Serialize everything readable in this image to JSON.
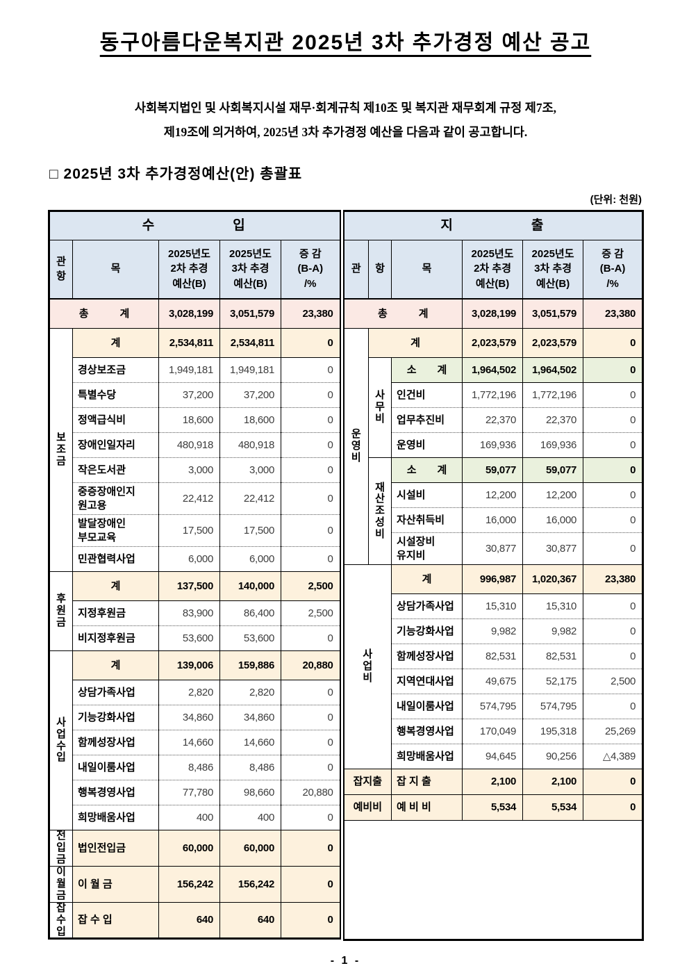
{
  "doc": {
    "title": "동구아름다운복지관 2025년 3차 추가경정 예산 공고",
    "intro_line1": "사회복지법인 및 사회복지시설 재무·회계규칙 제10조 및 복지관 재무회계 규정 제7조,",
    "intro_line2": "제19조에 의거하여, 2025년 3차 추가경정 예산을 다음과 같이 공고합니다.",
    "section_title": "□ 2025년 3차 추가경정예산(안) 총괄표",
    "unit_label": "(단위:  천원)",
    "page_number": "- 1 -"
  },
  "colors": {
    "head": "#dce6f1",
    "total": "#fbe9e4",
    "sum": "#fdf1dd",
    "subsum": "#eaf1dd"
  },
  "income_table": {
    "section": "수입",
    "rows": [
      {
        "kind": "head1",
        "cells": [
          {
            "t": "수　　　　　입",
            "cs": 5,
            "cls": "hdr hd1",
            "n": "income-section-header"
          }
        ]
      },
      {
        "kind": "head2",
        "cells": [
          {
            "t": "관\n항",
            "cls": "hdr",
            "n": "col-header-gwan-hang"
          },
          {
            "t": "목",
            "cls": "hdr",
            "n": "col-header-mok"
          },
          {
            "t": "2025년도\n2차 추경\n예산(B)",
            "cls": "hdr",
            "n": "col-header-budget-2"
          },
          {
            "t": "2025년도\n3차 추경\n예산(B)",
            "cls": "hdr",
            "n": "col-header-budget-3"
          },
          {
            "t": "증  감\n(B-A)\n/%",
            "cls": "hdr",
            "n": "col-header-change"
          }
        ]
      },
      {
        "kind": "total",
        "label": "총　　　계",
        "lcs": 2,
        "v": [
          "3,028,199",
          "3,051,579",
          "23,380"
        ]
      },
      {
        "kind": "sum",
        "pre": [
          {
            "t": "보\n조\n금",
            "rs": 9
          }
        ],
        "label": "계",
        "v": [
          "2,534,811",
          "2,534,811",
          "0"
        ]
      },
      {
        "kind": "item",
        "label": "경상보조금",
        "v": [
          "1,949,181",
          "1,949,181",
          "0"
        ]
      },
      {
        "kind": "item",
        "dot": true,
        "label": "특별수당",
        "v": [
          "37,200",
          "37,200",
          "0"
        ]
      },
      {
        "kind": "item",
        "dot": true,
        "label": "정액급식비",
        "v": [
          "18,600",
          "18,600",
          "0"
        ]
      },
      {
        "kind": "item",
        "dot": true,
        "label": "장애인일자리",
        "v": [
          "480,918",
          "480,918",
          "0"
        ]
      },
      {
        "kind": "item",
        "dot": true,
        "label": "작은도서관",
        "v": [
          "3,000",
          "3,000",
          "0"
        ]
      },
      {
        "kind": "item",
        "dot": true,
        "tall": true,
        "label": "중증장애인지\n원고용",
        "v": [
          "22,412",
          "22,412",
          "0"
        ]
      },
      {
        "kind": "item",
        "dot": true,
        "tall": true,
        "label": "발달장애인\n부모교육",
        "v": [
          "17,500",
          "17,500",
          "0"
        ]
      },
      {
        "kind": "item",
        "dot": true,
        "label": "민관협력사업",
        "v": [
          "6,000",
          "6,000",
          "0"
        ]
      },
      {
        "kind": "sum",
        "pre": [
          {
            "t": "후\n원\n금",
            "rs": 3
          }
        ],
        "label": "계",
        "v": [
          "137,500",
          "140,000",
          "2,500"
        ]
      },
      {
        "kind": "item",
        "label": "지정후원금",
        "v": [
          "83,900",
          "86,400",
          "2,500"
        ]
      },
      {
        "kind": "item",
        "dot": true,
        "label": "비지정후원금",
        "v": [
          "53,600",
          "53,600",
          "0"
        ]
      },
      {
        "kind": "sum",
        "pre": [
          {
            "t": "사\n업\n수\n입",
            "rs": 7
          }
        ],
        "label": "계",
        "v": [
          "139,006",
          "159,886",
          "20,880"
        ]
      },
      {
        "kind": "item",
        "label": "상담가족사업",
        "v": [
          "2,820",
          "2,820",
          "0"
        ]
      },
      {
        "kind": "item",
        "dot": true,
        "label": "기능강화사업",
        "v": [
          "34,860",
          "34,860",
          "0"
        ]
      },
      {
        "kind": "item",
        "dot": true,
        "label": "함께성장사업",
        "v": [
          "14,660",
          "14,660",
          "0"
        ]
      },
      {
        "kind": "item",
        "dot": true,
        "label": "내일이룸사업",
        "v": [
          "8,486",
          "8,486",
          "0"
        ]
      },
      {
        "kind": "item",
        "dot": true,
        "label": "행복경영사업",
        "v": [
          "77,780",
          "98,660",
          "20,880"
        ]
      },
      {
        "kind": "item",
        "dot": true,
        "label": "희망배움사업",
        "v": [
          "400",
          "400",
          "0"
        ]
      },
      {
        "kind": "single",
        "pre": [
          {
            "t": "전\n입\n금"
          }
        ],
        "label": "법인전입금",
        "v": [
          "60,000",
          "60,000",
          "0"
        ]
      },
      {
        "kind": "single",
        "pre": [
          {
            "t": "이\n월\n금"
          }
        ],
        "label": "이  월  금",
        "v": [
          "156,242",
          "156,242",
          "0"
        ]
      },
      {
        "kind": "single",
        "pre": [
          {
            "t": "잡\n수\n입"
          }
        ],
        "label": "잡  수  입",
        "v": [
          "640",
          "640",
          "0"
        ]
      }
    ]
  },
  "expense_table": {
    "section": "지출",
    "rows": [
      {
        "kind": "head1",
        "cells": [
          {
            "t": "지　　　　　출",
            "cs": 6,
            "cls": "hdr hd1",
            "n": "expense-section-header"
          }
        ]
      },
      {
        "kind": "head2",
        "cells": [
          {
            "t": "관",
            "cls": "hdr",
            "n": "col-header-gwan"
          },
          {
            "t": "항",
            "cls": "hdr",
            "n": "col-header-hang"
          },
          {
            "t": "목",
            "cls": "hdr",
            "n": "col-header-mok"
          },
          {
            "t": "2025년도\n2차 추경\n예산(B)",
            "cls": "hdr",
            "n": "col-header-budget-2"
          },
          {
            "t": "2025년도\n3차 추경\n예산(B)",
            "cls": "hdr",
            "n": "col-header-budget-3"
          },
          {
            "t": "증  감\n(B-A)\n/%",
            "cls": "hdr",
            "n": "col-header-change"
          }
        ]
      },
      {
        "kind": "total",
        "label": "총　　　계",
        "lcs": 3,
        "v": [
          "3,028,199",
          "3,051,579",
          "23,380"
        ]
      },
      {
        "kind": "sum",
        "pre": [
          {
            "t": "운\n영\n비",
            "rs": 9
          }
        ],
        "label": "계",
        "lcs": 2,
        "v": [
          "2,023,579",
          "2,023,579",
          "0"
        ]
      },
      {
        "kind": "subsum",
        "pre": [
          {
            "t": "사\n무\n비",
            "rs": 4
          }
        ],
        "label": "소　　계",
        "v": [
          "1,964,502",
          "1,964,502",
          "0"
        ]
      },
      {
        "kind": "item",
        "label": "인건비",
        "v": [
          "1,772,196",
          "1,772,196",
          "0"
        ]
      },
      {
        "kind": "item",
        "dot": true,
        "label": "업무추진비",
        "v": [
          "22,370",
          "22,370",
          "0"
        ]
      },
      {
        "kind": "item",
        "dot": true,
        "label": "운영비",
        "v": [
          "169,936",
          "169,936",
          "0"
        ]
      },
      {
        "kind": "subsum",
        "pre": [
          {
            "t": "재\n산\n조\n성\n비",
            "rs": 4
          }
        ],
        "label": "소　　계",
        "v": [
          "59,077",
          "59,077",
          "0"
        ]
      },
      {
        "kind": "item",
        "label": "시설비",
        "v": [
          "12,200",
          "12,200",
          "0"
        ]
      },
      {
        "kind": "item",
        "dot": true,
        "label": "자산취득비",
        "v": [
          "16,000",
          "16,000",
          "0"
        ]
      },
      {
        "kind": "item",
        "dot": true,
        "tall": true,
        "label": "시설장비\n유지비",
        "v": [
          "30,877",
          "30,877",
          "0"
        ]
      },
      {
        "kind": "sum",
        "pre": [
          {
            "t": "사\n업\n비",
            "rs": 8,
            "cs": 2
          }
        ],
        "label": "계",
        "v": [
          "996,987",
          "1,020,367",
          "23,380"
        ]
      },
      {
        "kind": "item",
        "label": "상담가족사업",
        "v": [
          "15,310",
          "15,310",
          "0"
        ]
      },
      {
        "kind": "item",
        "dot": true,
        "label": "기능강화사업",
        "v": [
          "9,982",
          "9,982",
          "0"
        ]
      },
      {
        "kind": "item",
        "dot": true,
        "label": "함께성장사업",
        "v": [
          "82,531",
          "82,531",
          "0"
        ]
      },
      {
        "kind": "item",
        "dot": true,
        "label": "지역연대사업",
        "v": [
          "49,675",
          "52,175",
          "2,500"
        ]
      },
      {
        "kind": "item",
        "dot": true,
        "label": "내일이룸사업",
        "v": [
          "574,795",
          "574,795",
          "0"
        ]
      },
      {
        "kind": "item",
        "dot": true,
        "label": "행복경영사업",
        "v": [
          "170,049",
          "195,318",
          "25,269"
        ]
      },
      {
        "kind": "item",
        "dot": true,
        "label": "희망배움사업",
        "v": [
          "94,645",
          "90,256",
          "△4,389"
        ]
      },
      {
        "kind": "single",
        "small": true,
        "pre": [
          {
            "t": "잡지출",
            "cs": 2,
            "cls": "grp-h single"
          }
        ],
        "label": "잡 지 출",
        "v": [
          "2,100",
          "2,100",
          "0"
        ]
      },
      {
        "kind": "single",
        "small": true,
        "pre": [
          {
            "t": "예비비",
            "cs": 2,
            "cls": "grp-h single"
          }
        ],
        "label": "예 비 비",
        "v": [
          "5,534",
          "5,534",
          "0"
        ]
      },
      {
        "kind": "fill",
        "cells": [
          {
            "t": "",
            "cs": 6,
            "cls": "fillcell",
            "n": "empty-cell"
          }
        ]
      }
    ]
  }
}
